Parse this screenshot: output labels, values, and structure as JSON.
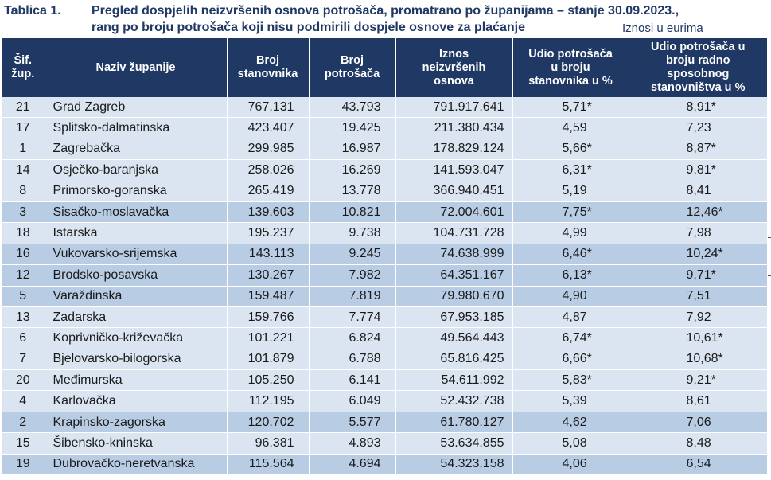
{
  "title": {
    "label": "Tablica 1.",
    "line1": "Pregled dospjelih neizvršenih osnova potrošača, promatrano po županijama – stanje 30.09.2023.,",
    "line2": "rang po broju potrošača koji nisu podmirili dospjele osnove za plaćanje",
    "note": "Iznosi u eurima"
  },
  "headers": {
    "code": [
      "Šif.",
      "žup."
    ],
    "name": [
      "Naziv županije"
    ],
    "population": [
      "Broj",
      "stanovnika"
    ],
    "consumers": [
      "Broj",
      "potrošača"
    ],
    "amount": [
      "Iznos",
      "neizvršenih",
      "osnova"
    ],
    "share_population": [
      "Udio potrošača",
      "u broju",
      "stanovnika u %"
    ],
    "share_workforce": [
      "Udio potrošača u",
      "broju radno",
      "sposobnog",
      "stanovništva u %"
    ]
  },
  "rows": [
    {
      "code": "21",
      "name": "Grad Zagreb",
      "population": "767.131",
      "consumers": "43.793",
      "amount": "791.917.641",
      "share_pop": "5,71*",
      "share_work": "8,91*",
      "shade": "light"
    },
    {
      "code": "17",
      "name": "Splitsko-dalmatinska",
      "population": "423.407",
      "consumers": "19.425",
      "amount": "211.380.434",
      "share_pop": "4,59",
      "share_work": "7,23",
      "shade": "light"
    },
    {
      "code": "1",
      "name": "Zagrebačka",
      "population": "299.985",
      "consumers": "16.987",
      "amount": "178.829.124",
      "share_pop": "5,66*",
      "share_work": "8,87*",
      "shade": "light"
    },
    {
      "code": "14",
      "name": "Osječko-baranjska",
      "population": "258.026",
      "consumers": "16.269",
      "amount": "141.593.047",
      "share_pop": "6,31*",
      "share_work": "9,81*",
      "shade": "light"
    },
    {
      "code": "8",
      "name": "Primorsko-goranska",
      "population": "265.419",
      "consumers": "13.778",
      "amount": "366.940.451",
      "share_pop": "5,19",
      "share_work": "8,41",
      "shade": "light"
    },
    {
      "code": "3",
      "name": "Sisačko-moslavačka",
      "population": "139.603",
      "consumers": "10.821",
      "amount": "72.004.601",
      "share_pop": "7,75*",
      "share_work": "12,46*",
      "shade": "dark"
    },
    {
      "code": "18",
      "name": "Istarska",
      "population": "195.237",
      "consumers": "9.738",
      "amount": "104.731.728",
      "share_pop": "4,99",
      "share_work": "7,98",
      "shade": "light"
    },
    {
      "code": "16",
      "name": "Vukovarsko-srijemska",
      "population": "143.113",
      "consumers": "9.245",
      "amount": "74.638.999",
      "share_pop": "6,46*",
      "share_work": "10,24*",
      "shade": "dark"
    },
    {
      "code": "12",
      "name": "Brodsko-posavska",
      "population": "130.267",
      "consumers": "7.982",
      "amount": "64.351.167",
      "share_pop": "6,13*",
      "share_work": "9,71*",
      "shade": "dark"
    },
    {
      "code": "5",
      "name": "Varaždinska",
      "population": "159.487",
      "consumers": "7.819",
      "amount": "79.980.670",
      "share_pop": "4,90",
      "share_work": "7,51",
      "shade": "dark"
    },
    {
      "code": "13",
      "name": "Zadarska",
      "population": "159.766",
      "consumers": "7.774",
      "amount": "67.953.185",
      "share_pop": "4,87",
      "share_work": "7,92",
      "shade": "light"
    },
    {
      "code": "6",
      "name": "Koprivničko-križevačka",
      "population": "101.221",
      "consumers": "6.824",
      "amount": "49.564.443",
      "share_pop": "6,74*",
      "share_work": "10,61*",
      "shade": "light"
    },
    {
      "code": "7",
      "name": "Bjelovarsko-bilogorska",
      "population": "101.879",
      "consumers": "6.788",
      "amount": "65.816.425",
      "share_pop": "6,66*",
      "share_work": "10,68*",
      "shade": "light"
    },
    {
      "code": "20",
      "name": "Međimurska",
      "population": "105.250",
      "consumers": "6.141",
      "amount": "54.611.992",
      "share_pop": "5,83*",
      "share_work": "9,21*",
      "shade": "light"
    },
    {
      "code": "4",
      "name": "Karlovačka",
      "population": "112.195",
      "consumers": "6.049",
      "amount": "52.432.738",
      "share_pop": "5,39",
      "share_work": "8,61",
      "shade": "light"
    },
    {
      "code": "2",
      "name": "Krapinsko-zagorska",
      "population": "120.702",
      "consumers": "5.577",
      "amount": "61.780.127",
      "share_pop": "4,62",
      "share_work": "7,06",
      "shade": "dark"
    },
    {
      "code": "15",
      "name": "Šibensko-kninska",
      "population": "96.381",
      "consumers": "4.893",
      "amount": "53.634.855",
      "share_pop": "5,08",
      "share_work": "8,48",
      "shade": "light"
    },
    {
      "code": "19",
      "name": "Dubrovačko-neretvanska",
      "population": "115.564",
      "consumers": "4.694",
      "amount": "54.323.158",
      "share_pop": "4,06",
      "share_work": "6,54",
      "shade": "dark"
    }
  ]
}
